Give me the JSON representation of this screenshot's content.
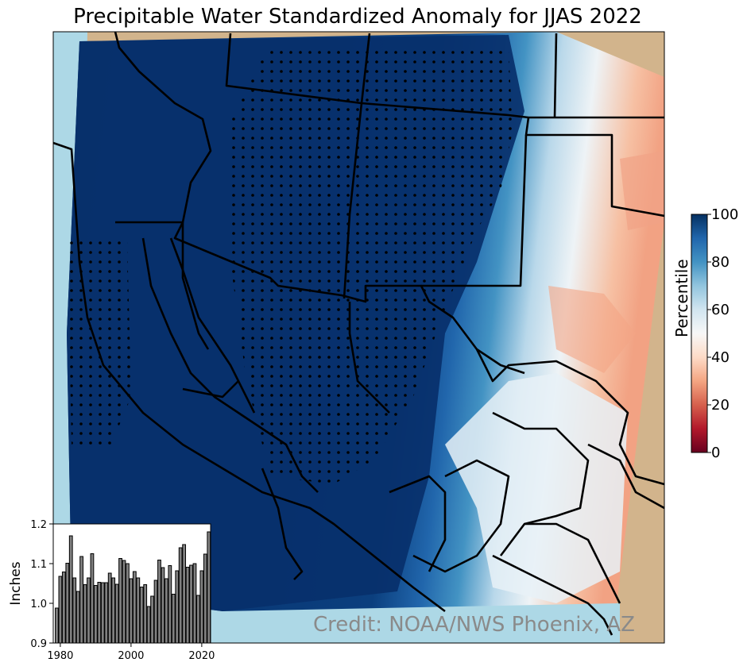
{
  "title": "Precipitable Water Standardized Anomaly for JJAS 2022",
  "credit": "Credit: NOAA/NWS Phoenix, AZ",
  "colorbar": {
    "label": "Percentile",
    "ticks": [
      "0",
      "20",
      "40",
      "60",
      "80",
      "100"
    ],
    "range": [
      0,
      100
    ],
    "colors": [
      "#67001f",
      "#b2182b",
      "#d6604d",
      "#f4a582",
      "#fddbc7",
      "#f7f7f7",
      "#d1e5f0",
      "#92c5de",
      "#4393c3",
      "#2166ac",
      "#053061"
    ]
  },
  "map_colors": {
    "ocean": "#add8e6",
    "land_outside": "#d2b48c",
    "wet": "#08306b",
    "boundary": "#000000"
  },
  "chart_data": {
    "type": "bar",
    "title": "",
    "xlabel": "",
    "ylabel": "Inches",
    "ylim": [
      0.9,
      1.2
    ],
    "yticks": [
      "0.9",
      "1.0",
      "1.1",
      "1.2"
    ],
    "xticks": [
      "1980",
      "2000",
      "2020"
    ],
    "bar_color": "#808080",
    "x": [
      1979,
      1980,
      1981,
      1982,
      1983,
      1984,
      1985,
      1986,
      1987,
      1988,
      1989,
      1990,
      1991,
      1992,
      1993,
      1994,
      1995,
      1996,
      1997,
      1998,
      1999,
      2000,
      2001,
      2002,
      2003,
      2004,
      2005,
      2006,
      2007,
      2008,
      2009,
      2010,
      2011,
      2012,
      2013,
      2014,
      2015,
      2016,
      2017,
      2018,
      2019,
      2020,
      2021,
      2022
    ],
    "values": [
      0.988,
      1.068,
      1.079,
      1.101,
      1.17,
      1.064,
      1.03,
      1.118,
      1.047,
      1.064,
      1.125,
      1.045,
      1.053,
      1.052,
      1.052,
      1.076,
      1.064,
      1.048,
      1.113,
      1.108,
      1.1,
      1.062,
      1.08,
      1.064,
      1.041,
      1.047,
      0.992,
      1.018,
      1.058,
      1.109,
      1.09,
      1.062,
      1.095,
      1.023,
      1.082,
      1.14,
      1.148,
      1.091,
      1.096,
      1.1,
      1.02,
      1.082,
      1.124,
      1.18
    ]
  }
}
